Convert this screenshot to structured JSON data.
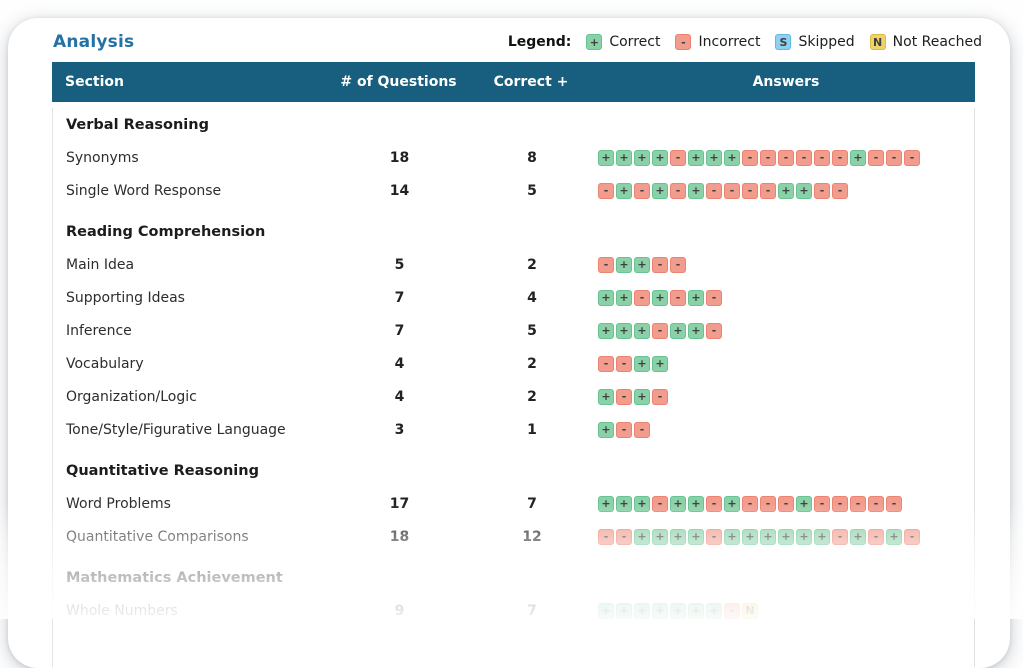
{
  "page_title": "Analysis",
  "legend": {
    "label": "Legend:",
    "items": [
      {
        "symbol": "+",
        "label": "Correct"
      },
      {
        "symbol": "-",
        "label": "Incorrect"
      },
      {
        "symbol": "S",
        "label": "Skipped"
      },
      {
        "symbol": "N",
        "label": "Not Reached"
      }
    ]
  },
  "colors": {
    "title": "#2471a3",
    "header_bg": "#185e7e",
    "correct_bg": "#8bd1a8",
    "correct_border": "#67c391",
    "incorrect_bg": "#f19c8d",
    "incorrect_border": "#ec8271",
    "skipped_bg": "#8ed1f0",
    "skipped_border": "#5fb9e3",
    "notreached_bg": "#eed26b",
    "notreached_border": "#d9ba45"
  },
  "table": {
    "columns": [
      "Section",
      "# of Questions",
      "Correct +",
      "Answers"
    ],
    "rows": [
      {
        "type": "section",
        "label": "Verbal Reasoning"
      },
      {
        "type": "data",
        "label": "Synonyms",
        "questions": "18",
        "correct": "8",
        "answers": [
          "+",
          "+",
          "+",
          "+",
          "-",
          "+",
          "+",
          "+",
          "-",
          "-",
          "-",
          "-",
          "-",
          "-",
          "+",
          "-",
          "-",
          "-"
        ]
      },
      {
        "type": "data",
        "label": "Single Word Response",
        "questions": "14",
        "correct": "5",
        "answers": [
          "-",
          "+",
          "-",
          "+",
          "-",
          "+",
          "-",
          "-",
          "-",
          "-",
          "+",
          "+",
          "-",
          "-"
        ]
      },
      {
        "type": "section",
        "label": "Reading Comprehension"
      },
      {
        "type": "data",
        "label": "Main Idea",
        "questions": "5",
        "correct": "2",
        "answers": [
          "-",
          "+",
          "+",
          "-",
          "-"
        ]
      },
      {
        "type": "data",
        "label": "Supporting Ideas",
        "questions": "7",
        "correct": "4",
        "answers": [
          "+",
          "+",
          "-",
          "+",
          "-",
          "+",
          "-"
        ]
      },
      {
        "type": "data",
        "label": "Inference",
        "questions": "7",
        "correct": "5",
        "answers": [
          "+",
          "+",
          "+",
          "-",
          "+",
          "+",
          "-"
        ]
      },
      {
        "type": "data",
        "label": "Vocabulary",
        "questions": "4",
        "correct": "2",
        "answers": [
          "-",
          "-",
          "+",
          "+"
        ]
      },
      {
        "type": "data",
        "label": "Organization/Logic",
        "questions": "4",
        "correct": "2",
        "answers": [
          "+",
          "-",
          "+",
          "-"
        ]
      },
      {
        "type": "data",
        "label": "Tone/Style/Figurative Language",
        "questions": "3",
        "correct": "1",
        "answers": [
          "+",
          "-",
          "-"
        ]
      },
      {
        "type": "section",
        "label": "Quantitative Reasoning"
      },
      {
        "type": "data",
        "label": "Word Problems",
        "questions": "17",
        "correct": "7",
        "answers": [
          "+",
          "+",
          "+",
          "-",
          "+",
          "+",
          "-",
          "+",
          "-",
          "-",
          "-",
          "+",
          "-",
          "-",
          "-",
          "-",
          "-"
        ]
      },
      {
        "type": "data",
        "label": "Quantitative Comparisons",
        "questions": "18",
        "correct": "12",
        "answers": [
          "-",
          "-",
          "+",
          "+",
          "+",
          "+",
          "-",
          "+",
          "+",
          "+",
          "+",
          "+",
          "+",
          "-",
          "+",
          "-",
          "+",
          "-"
        ]
      },
      {
        "type": "section",
        "label": "Mathematics Achievement"
      },
      {
        "type": "data",
        "label": "Whole Numbers",
        "questions": "9",
        "correct": "7",
        "answers": [
          "+",
          "+",
          "+",
          "+",
          "+",
          "+",
          "+",
          "-",
          "N"
        ]
      }
    ]
  }
}
